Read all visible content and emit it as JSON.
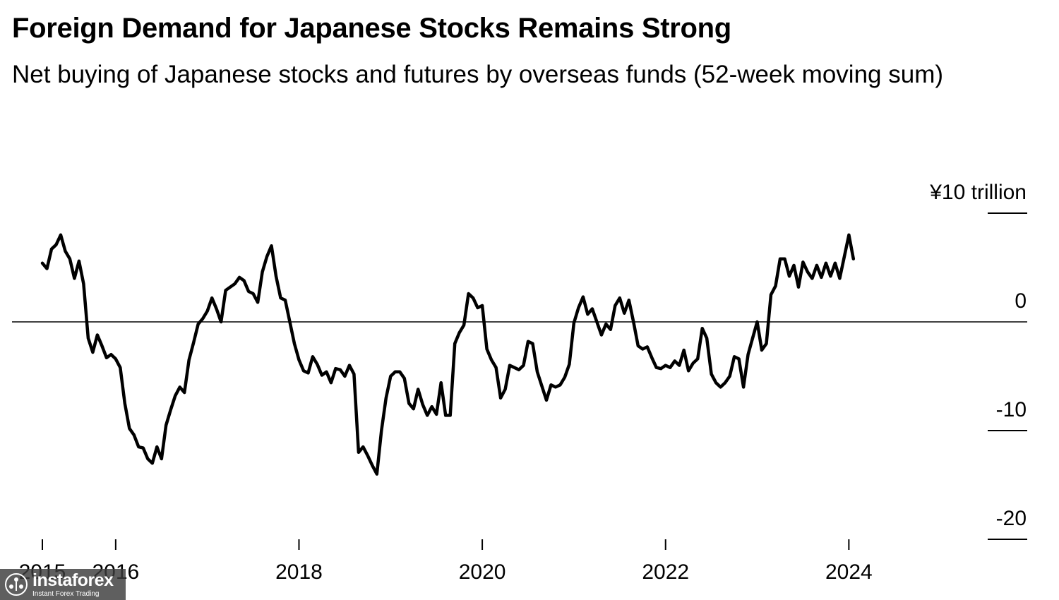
{
  "chart_data": {
    "type": "line",
    "title": "Foreign Demand for Japanese Stocks Remains Strong",
    "subtitle": "Net buying of Japanese stocks and futures by overseas funds (52-week moving sum)",
    "unit_label": "¥10 trillion",
    "ylim": [
      -20,
      10
    ],
    "yticks": [
      {
        "value": 10,
        "label": "¥10 trillion"
      },
      {
        "value": 0,
        "label": "0"
      },
      {
        "value": -10,
        "label": "-10"
      },
      {
        "value": -20,
        "label": "-20"
      }
    ],
    "xlim": [
      2015.0,
      2024.6
    ],
    "xticks": [
      {
        "value": 2015.0,
        "label": "2015"
      },
      {
        "value": 2015.8,
        "label": "2016"
      },
      {
        "value": 2017.8,
        "label": "2018"
      },
      {
        "value": 2019.8,
        "label": "2020"
      },
      {
        "value": 2021.8,
        "label": "2022"
      },
      {
        "value": 2023.8,
        "label": "2024"
      }
    ],
    "reference_line": 0,
    "series": [
      {
        "name": "Net buying by overseas funds",
        "color": "#000000",
        "points": [
          [
            2015.0,
            5.4
          ],
          [
            2015.05,
            4.9
          ],
          [
            2015.1,
            6.7
          ],
          [
            2015.15,
            7.1
          ],
          [
            2015.2,
            8.0
          ],
          [
            2015.25,
            6.5
          ],
          [
            2015.3,
            5.8
          ],
          [
            2015.35,
            4.0
          ],
          [
            2015.4,
            5.6
          ],
          [
            2015.45,
            3.5
          ],
          [
            2015.5,
            -1.5
          ],
          [
            2015.55,
            -2.8
          ],
          [
            2015.6,
            -1.2
          ],
          [
            2015.65,
            -2.2
          ],
          [
            2015.7,
            -3.3
          ],
          [
            2015.75,
            -3.0
          ],
          [
            2015.8,
            -3.4
          ],
          [
            2015.85,
            -4.2
          ],
          [
            2015.9,
            -7.5
          ],
          [
            2015.95,
            -9.8
          ],
          [
            2016.0,
            -10.4
          ],
          [
            2016.05,
            -11.5
          ],
          [
            2016.1,
            -11.6
          ],
          [
            2016.15,
            -12.6
          ],
          [
            2016.2,
            -13.0
          ],
          [
            2016.25,
            -11.5
          ],
          [
            2016.3,
            -12.6
          ],
          [
            2016.35,
            -9.5
          ],
          [
            2016.4,
            -8.1
          ],
          [
            2016.45,
            -6.8
          ],
          [
            2016.5,
            -6.0
          ],
          [
            2016.55,
            -6.5
          ],
          [
            2016.6,
            -3.5
          ],
          [
            2016.65,
            -1.9
          ],
          [
            2016.7,
            -0.2
          ],
          [
            2016.75,
            0.3
          ],
          [
            2016.8,
            1.0
          ],
          [
            2016.85,
            2.2
          ],
          [
            2016.9,
            1.2
          ],
          [
            2016.95,
            0.0
          ],
          [
            2017.0,
            2.9
          ],
          [
            2017.05,
            3.2
          ],
          [
            2017.1,
            3.5
          ],
          [
            2017.15,
            4.1
          ],
          [
            2017.2,
            3.8
          ],
          [
            2017.25,
            2.8
          ],
          [
            2017.3,
            2.6
          ],
          [
            2017.35,
            1.8
          ],
          [
            2017.4,
            4.6
          ],
          [
            2017.45,
            6.0
          ],
          [
            2017.5,
            7.0
          ],
          [
            2017.55,
            4.2
          ],
          [
            2017.6,
            2.2
          ],
          [
            2017.65,
            2.0
          ],
          [
            2017.7,
            0.0
          ],
          [
            2017.75,
            -2.0
          ],
          [
            2017.8,
            -3.5
          ],
          [
            2017.85,
            -4.5
          ],
          [
            2017.9,
            -4.7
          ],
          [
            2017.95,
            -3.2
          ],
          [
            2018.0,
            -3.9
          ],
          [
            2018.05,
            -4.9
          ],
          [
            2018.1,
            -4.6
          ],
          [
            2018.15,
            -5.6
          ],
          [
            2018.2,
            -4.3
          ],
          [
            2018.25,
            -4.4
          ],
          [
            2018.3,
            -5.0
          ],
          [
            2018.35,
            -4.0
          ],
          [
            2018.4,
            -4.8
          ],
          [
            2018.45,
            -12.0
          ],
          [
            2018.5,
            -11.5
          ],
          [
            2018.55,
            -12.3
          ],
          [
            2018.6,
            -13.2
          ],
          [
            2018.65,
            -14.0
          ],
          [
            2018.7,
            -10.0
          ],
          [
            2018.75,
            -7.0
          ],
          [
            2018.8,
            -5.0
          ],
          [
            2018.85,
            -4.6
          ],
          [
            2018.9,
            -4.6
          ],
          [
            2018.95,
            -5.2
          ],
          [
            2019.0,
            -7.5
          ],
          [
            2019.05,
            -8.0
          ],
          [
            2019.1,
            -6.2
          ],
          [
            2019.15,
            -7.6
          ],
          [
            2019.2,
            -8.6
          ],
          [
            2019.25,
            -7.8
          ],
          [
            2019.3,
            -8.5
          ],
          [
            2019.35,
            -5.6
          ],
          [
            2019.4,
            -8.6
          ],
          [
            2019.45,
            -8.6
          ],
          [
            2019.5,
            -2.0
          ],
          [
            2019.55,
            -1.0
          ],
          [
            2019.6,
            -0.3
          ],
          [
            2019.65,
            2.6
          ],
          [
            2019.7,
            2.2
          ],
          [
            2019.75,
            1.3
          ],
          [
            2019.8,
            1.5
          ],
          [
            2019.85,
            -2.5
          ],
          [
            2019.9,
            -3.5
          ],
          [
            2019.95,
            -4.2
          ],
          [
            2020.0,
            -7.0
          ],
          [
            2020.05,
            -6.2
          ],
          [
            2020.1,
            -4.0
          ],
          [
            2020.15,
            -4.2
          ],
          [
            2020.2,
            -4.4
          ],
          [
            2020.25,
            -4.0
          ],
          [
            2020.3,
            -1.8
          ],
          [
            2020.35,
            -2.0
          ],
          [
            2020.4,
            -4.6
          ],
          [
            2020.45,
            -5.9
          ],
          [
            2020.5,
            -7.2
          ],
          [
            2020.55,
            -5.8
          ],
          [
            2020.6,
            -6.0
          ],
          [
            2020.65,
            -5.8
          ],
          [
            2020.7,
            -5.1
          ],
          [
            2020.75,
            -3.9
          ],
          [
            2020.8,
            -0.1
          ],
          [
            2020.85,
            1.3
          ],
          [
            2020.9,
            2.3
          ],
          [
            2020.95,
            0.7
          ],
          [
            2021.0,
            1.2
          ],
          [
            2021.05,
            0.0
          ],
          [
            2021.1,
            -1.2
          ],
          [
            2021.15,
            -0.2
          ],
          [
            2021.2,
            -0.7
          ],
          [
            2021.25,
            1.5
          ],
          [
            2021.3,
            2.2
          ],
          [
            2021.35,
            0.8
          ],
          [
            2021.4,
            2.0
          ],
          [
            2021.45,
            0.0
          ],
          [
            2021.5,
            -2.2
          ],
          [
            2021.55,
            -2.5
          ],
          [
            2021.6,
            -2.3
          ],
          [
            2021.65,
            -3.3
          ],
          [
            2021.7,
            -4.2
          ],
          [
            2021.75,
            -4.3
          ],
          [
            2021.8,
            -4.0
          ],
          [
            2021.85,
            -4.2
          ],
          [
            2021.9,
            -3.6
          ],
          [
            2021.95,
            -4.0
          ],
          [
            2022.0,
            -2.6
          ],
          [
            2022.05,
            -4.5
          ],
          [
            2022.1,
            -3.8
          ],
          [
            2022.15,
            -3.4
          ],
          [
            2022.2,
            -0.6
          ],
          [
            2022.25,
            -1.5
          ],
          [
            2022.3,
            -4.8
          ],
          [
            2022.35,
            -5.6
          ],
          [
            2022.4,
            -6.0
          ],
          [
            2022.45,
            -5.6
          ],
          [
            2022.5,
            -5.0
          ],
          [
            2022.55,
            -3.2
          ],
          [
            2022.6,
            -3.4
          ],
          [
            2022.65,
            -6.0
          ],
          [
            2022.7,
            -3.0
          ],
          [
            2022.75,
            -1.5
          ],
          [
            2022.8,
            0.0
          ],
          [
            2022.85,
            -2.6
          ],
          [
            2022.9,
            -2.0
          ],
          [
            2022.95,
            2.5
          ],
          [
            2023.0,
            3.3
          ],
          [
            2023.05,
            5.8
          ],
          [
            2023.1,
            5.8
          ],
          [
            2023.15,
            4.2
          ],
          [
            2023.2,
            5.2
          ],
          [
            2023.25,
            3.2
          ],
          [
            2023.3,
            5.5
          ],
          [
            2023.35,
            4.6
          ],
          [
            2023.4,
            4.0
          ],
          [
            2023.45,
            5.2
          ],
          [
            2023.5,
            4.1
          ],
          [
            2023.55,
            5.4
          ],
          [
            2023.6,
            4.2
          ],
          [
            2023.65,
            5.4
          ],
          [
            2023.7,
            4.0
          ],
          [
            2023.75,
            6.0
          ],
          [
            2023.8,
            8.0
          ],
          [
            2023.85,
            5.8
          ]
        ]
      }
    ]
  },
  "watermark": {
    "brand": "instaforex",
    "tagline": "Instant Forex Trading"
  }
}
